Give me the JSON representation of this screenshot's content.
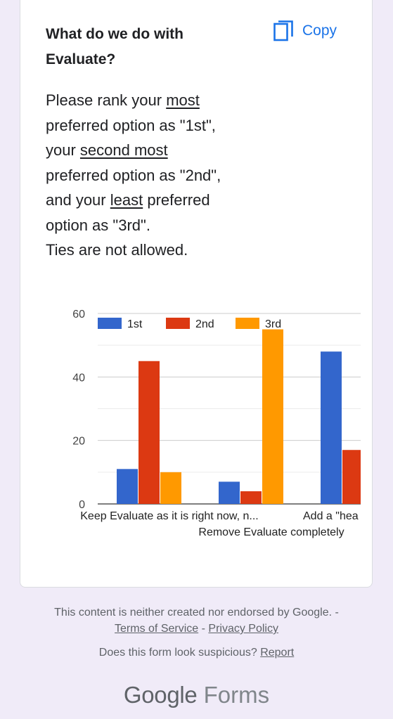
{
  "question": {
    "title": "What do we do with Evaluate?",
    "copy_label": "Copy",
    "desc": {
      "l1a": "Please rank your ",
      "l1b": "most",
      "l2": "preferred option as \"1st\",",
      "l3a": "your ",
      "l3b": "second most",
      "l4": "preferred option as \"2nd\",",
      "l5a": "and your ",
      "l5b": "least",
      "l5c": " preferred",
      "l6": "option as \"3rd\".",
      "l7": "Ties are not allowed."
    }
  },
  "chart_data": {
    "type": "bar",
    "categories": [
      "Keep Evaluate as it is right now, n...",
      "Remove Evaluate completely",
      "Add a \"hea"
    ],
    "series": [
      {
        "name": "1st",
        "values": [
          11,
          7,
          48
        ],
        "color": "#3366cc"
      },
      {
        "name": "2nd",
        "values": [
          45,
          4,
          17
        ],
        "color": "#dc3912"
      },
      {
        "name": "3rd",
        "values": [
          10,
          55,
          null
        ],
        "color": "#ff9900"
      }
    ],
    "yticks": [
      0,
      20,
      40,
      60
    ],
    "ylim": [
      0,
      60
    ],
    "grid": true,
    "legend": "top"
  },
  "footer": {
    "disclaimer": "This content is neither created nor endorsed by Google. -",
    "terms": "Terms of Service",
    "sep": " - ",
    "privacy": "Privacy Policy",
    "suspicious": "Does this form look suspicious? ",
    "report": "Report",
    "brand_google": "Google",
    "brand_forms": "Forms"
  }
}
